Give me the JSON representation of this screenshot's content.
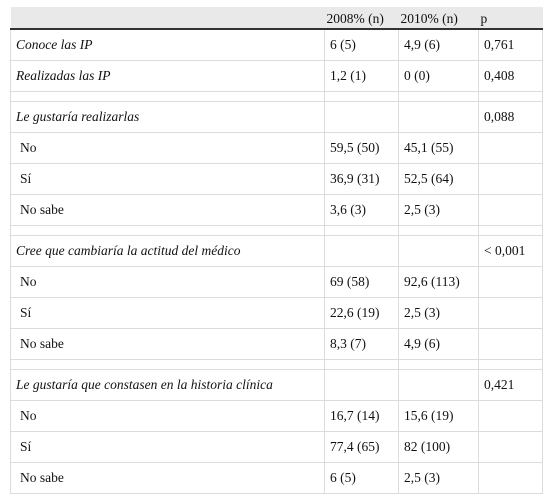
{
  "header": [
    "",
    "2008% (n)",
    "2010% (n)",
    "p"
  ],
  "rows": [
    {
      "type": "item",
      "label": "Conoce las IP",
      "c2008": "6 (5)",
      "c2010": "4,9 (6)",
      "p": "0,761"
    },
    {
      "type": "item",
      "label": "Realizadas las IP",
      "c2008": "1,2 (1)",
      "c2010": "0 (0)",
      "p": "0,408"
    },
    {
      "type": "gap"
    },
    {
      "type": "item",
      "label": "Le gustaría realizarlas",
      "c2008": "",
      "c2010": "",
      "p": "0,088"
    },
    {
      "type": "sub",
      "label": "No",
      "c2008": "59,5 (50)",
      "c2010": "45,1 (55)",
      "p": ""
    },
    {
      "type": "sub",
      "label": "Sí",
      "c2008": "36,9 (31)",
      "c2010": "52,5 (64)",
      "p": ""
    },
    {
      "type": "sub",
      "label": "No sabe",
      "c2008": "3,6 (3)",
      "c2010": "2,5 (3)",
      "p": ""
    },
    {
      "type": "gap"
    },
    {
      "type": "item",
      "label": "Cree que cambiaría la actitud del médico",
      "c2008": "",
      "c2010": "",
      "p": "< 0,001"
    },
    {
      "type": "sub",
      "label": "No",
      "c2008": "69 (58)",
      "c2010": "92,6 (113)",
      "p": ""
    },
    {
      "type": "sub",
      "label": "Sí",
      "c2008": "22,6 (19)",
      "c2010": "2,5 (3)",
      "p": ""
    },
    {
      "type": "sub",
      "label": "No sabe",
      "c2008": "8,3 (7)",
      "c2010": "4,9 (6)",
      "p": ""
    },
    {
      "type": "gap"
    },
    {
      "type": "item",
      "label": "Le gustaría que constasen en la historia clínica",
      "c2008": "",
      "c2010": "",
      "p": "0,421"
    },
    {
      "type": "sub",
      "label": "No",
      "c2008": "16,7 (14)",
      "c2010": "15,6 (19)",
      "p": ""
    },
    {
      "type": "sub",
      "label": "Sí",
      "c2008": "77,4 (65)",
      "c2010": "82 (100)",
      "p": ""
    },
    {
      "type": "sub",
      "label": "No sabe",
      "c2008": "6 (5)",
      "c2010": "2,5 (3)",
      "p": ""
    }
  ]
}
